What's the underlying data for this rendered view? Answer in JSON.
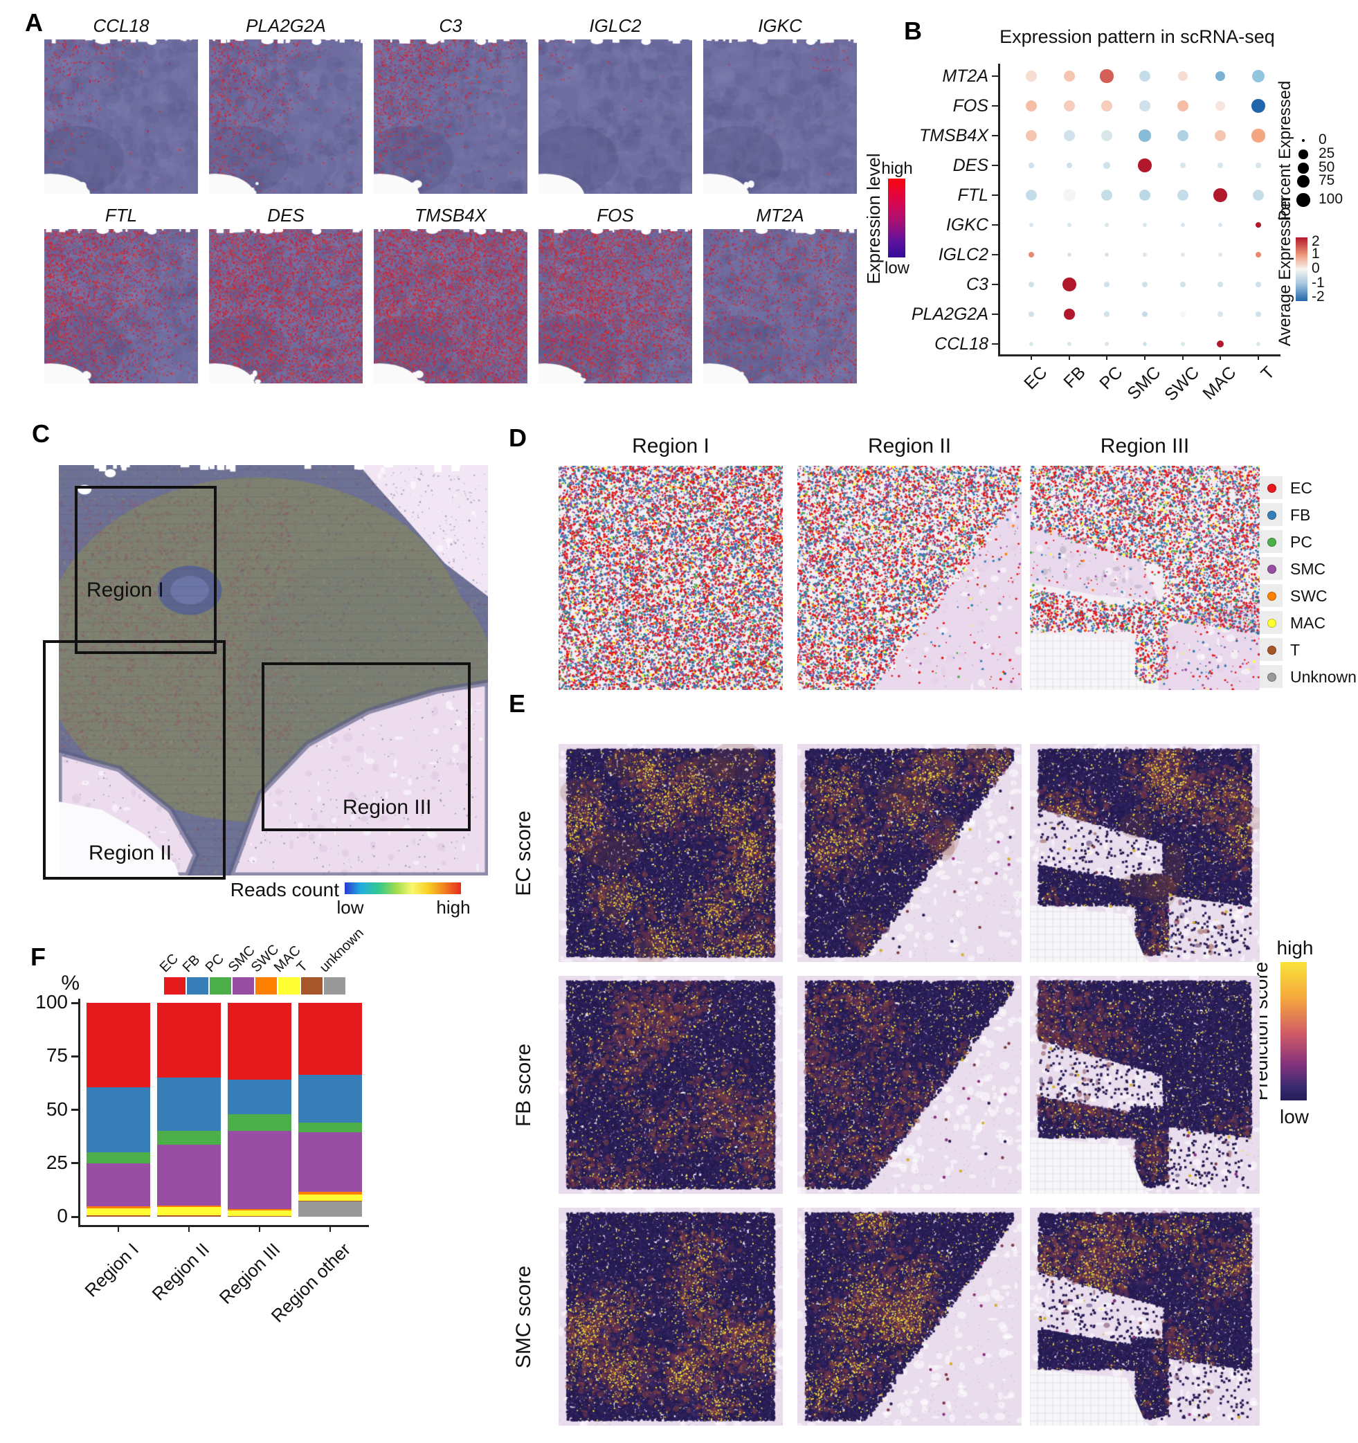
{
  "palette": {
    "EC": "#E41A1C",
    "FB": "#377EB8",
    "PC": "#4DAF4A",
    "SMC": "#984EA3",
    "SWC": "#FF7F00",
    "MAC": "#FFFF33",
    "T": "#A65628",
    "unknown": "#999999"
  },
  "panels": {
    "A": {
      "label": "A",
      "genes_row1": [
        "CCL18",
        "PLA2G2A",
        "C3",
        "IGLC2",
        "IGKC"
      ],
      "genes_row2": [
        "FTL",
        "DES",
        "TMSB4X",
        "FOS",
        "MT2A"
      ],
      "colorbar": {
        "title": "Expression level",
        "high": "high",
        "low": "low"
      }
    },
    "B": {
      "label": "B",
      "title": "Expression pattern in scRNA-seq",
      "percent_legend": {
        "title": "Percent Expressed",
        "ticks": [
          "0",
          "25",
          "50",
          "75",
          "100"
        ]
      },
      "avg_legend": {
        "title": "Average Expression",
        "ticks": [
          "2",
          "1",
          "0",
          "-1",
          "-2"
        ]
      }
    },
    "C": {
      "label": "C",
      "region_labels": [
        "Region I",
        "Region II",
        "Region III"
      ],
      "colorbar": {
        "title": "Reads count",
        "low": "low",
        "high": "high"
      }
    },
    "D": {
      "label": "D",
      "titles": [
        "Region I",
        "Region II",
        "Region III"
      ],
      "legend": [
        {
          "label": "EC",
          "color": "#E41A1C"
        },
        {
          "label": "FB",
          "color": "#377EB8"
        },
        {
          "label": "PC",
          "color": "#4DAF4A"
        },
        {
          "label": "SMC",
          "color": "#984EA3"
        },
        {
          "label": "SWC",
          "color": "#FF7F00"
        },
        {
          "label": "MAC",
          "color": "#FFFF33"
        },
        {
          "label": "T",
          "color": "#A65628"
        },
        {
          "label": "Unknown",
          "color": "#999999"
        }
      ]
    },
    "E": {
      "label": "E",
      "row_labels": [
        "EC score",
        "FB score",
        "SMC score"
      ],
      "colorbar": {
        "title": "Prediction score",
        "high": "high",
        "low": "low"
      }
    },
    "F": {
      "label": "F",
      "y_axis_label": "%",
      "y_ticks": [
        "100",
        "75",
        "50",
        "25",
        "0"
      ],
      "x_categories": [
        "Region I",
        "Region II",
        "Region III",
        "Region other"
      ],
      "legend_labels": [
        "EC",
        "FB",
        "PC",
        "SMC",
        "SWC",
        "MAC",
        "T",
        "unknown"
      ]
    }
  },
  "chart_data": [
    {
      "type": "dotplot",
      "panel": "B",
      "title": "Expression pattern in scRNA-seq",
      "genes": [
        "MT2A",
        "FOS",
        "TMSB4X",
        "DES",
        "FTL",
        "IGKC",
        "IGLC2",
        "C3",
        "PLA2G2A",
        "CCL18"
      ],
      "cell_types": [
        "EC",
        "FB",
        "PC",
        "SMC",
        "SWC",
        "MAC",
        "T"
      ],
      "percent_expressed": [
        [
          55,
          60,
          95,
          60,
          50,
          45,
          85
        ],
        [
          60,
          60,
          55,
          55,
          60,
          50,
          100
        ],
        [
          60,
          70,
          60,
          75,
          70,
          65,
          95
        ],
        [
          4,
          4,
          12,
          100,
          4,
          4,
          4
        ],
        [
          60,
          75,
          65,
          65,
          60,
          100,
          70
        ],
        [
          2,
          2,
          2,
          2,
          2,
          2,
          8
        ],
        [
          6,
          2,
          2,
          2,
          2,
          2,
          6
        ],
        [
          8,
          100,
          5,
          8,
          6,
          6,
          4
        ],
        [
          8,
          55,
          5,
          8,
          5,
          4,
          5
        ],
        [
          2,
          2,
          2,
          3,
          2,
          18,
          2
        ]
      ],
      "average_expression": [
        [
          0.3,
          0.6,
          1.5,
          -0.5,
          0.3,
          -1.2,
          -1.0
        ],
        [
          0.7,
          0.5,
          0.5,
          -0.4,
          0.7,
          0.2,
          -2.0
        ],
        [
          0.6,
          -0.4,
          -0.3,
          -1.1,
          -0.7,
          0.6,
          1.0
        ],
        [
          -0.4,
          -0.4,
          -0.4,
          2.0,
          -0.3,
          -0.3,
          -0.3
        ],
        [
          -0.5,
          0.0,
          -0.5,
          -0.6,
          -0.5,
          2.0,
          -0.5
        ],
        [
          -0.3,
          -0.3,
          -0.3,
          -0.3,
          -0.3,
          -0.3,
          2.0
        ],
        [
          1.2,
          -0.3,
          -0.3,
          -0.3,
          -0.3,
          -0.3,
          1.2
        ],
        [
          -0.4,
          2.0,
          -0.4,
          -0.4,
          -0.4,
          -0.4,
          -0.4
        ],
        [
          -0.4,
          2.0,
          -0.4,
          -0.5,
          0.0,
          -0.3,
          -0.4
        ],
        [
          -0.3,
          -0.3,
          -0.3,
          -0.4,
          -0.3,
          2.0,
          -0.3
        ]
      ],
      "percent_ticks": [
        0,
        25,
        50,
        75,
        100
      ],
      "avg_ticks": [
        2,
        1,
        0,
        -1,
        -2
      ],
      "legend_position": "right"
    },
    {
      "type": "stacked_bar",
      "panel": "F",
      "ylabel": "%",
      "ylim": [
        0,
        100
      ],
      "yticks": [
        100,
        75,
        50,
        25,
        0
      ],
      "categories": [
        "Region I",
        "Region II",
        "Region III",
        "Region other"
      ],
      "stack_order_top_to_bottom": [
        "EC",
        "FB",
        "PC",
        "SMC",
        "SWC",
        "MAC",
        "T",
        "unknown"
      ],
      "series": [
        {
          "name": "EC",
          "values": [
            39.5,
            35,
            36,
            33.5
          ]
        },
        {
          "name": "FB",
          "values": [
            30.5,
            25,
            16,
            22.5
          ]
        },
        {
          "name": "PC",
          "values": [
            5,
            6.5,
            8,
            4.5
          ]
        },
        {
          "name": "SMC",
          "values": [
            20,
            28.3,
            36.5,
            28
          ]
        },
        {
          "name": "SWC",
          "values": [
            1,
            0.7,
            0.5,
            1
          ]
        },
        {
          "name": "MAC",
          "values": [
            3.5,
            4,
            2.7,
            3
          ]
        },
        {
          "name": "T",
          "values": [
            0.5,
            0.5,
            0.3,
            0.5
          ]
        },
        {
          "name": "unknown",
          "values": [
            0,
            0,
            0,
            7
          ]
        }
      ]
    }
  ]
}
